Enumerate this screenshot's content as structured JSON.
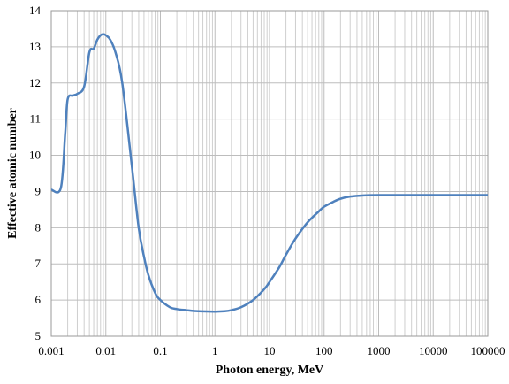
{
  "chart_data": {
    "type": "line",
    "title": "",
    "xlabel": "Photon energy, MeV",
    "ylabel": "Effective atomic number",
    "x_scale": "log",
    "xlim": [
      0.001,
      100000
    ],
    "ylim": [
      5,
      14
    ],
    "grid": true,
    "x_tick_labels": [
      "0.001",
      "0.01",
      "0.1",
      "1",
      "10",
      "100",
      "1000",
      "10000",
      "100000"
    ],
    "y_tick_labels": [
      "5",
      "6",
      "7",
      "8",
      "9",
      "10",
      "11",
      "12",
      "13",
      "14"
    ],
    "series": [
      {
        "color": "#4f81bd",
        "x": [
          0.001,
          0.0015,
          0.0018,
          0.002,
          0.0025,
          0.003,
          0.004,
          0.005,
          0.006,
          0.007,
          0.008,
          0.009,
          0.01,
          0.012,
          0.015,
          0.02,
          0.03,
          0.04,
          0.05,
          0.06,
          0.08,
          0.1,
          0.15,
          0.2,
          0.3,
          0.5,
          1,
          1.5,
          2,
          3,
          5,
          8,
          10,
          15,
          20,
          30,
          50,
          80,
          100,
          150,
          200,
          300,
          500,
          1000,
          10000,
          100000
        ],
        "y": [
          9.05,
          9.1,
          10.6,
          11.55,
          11.65,
          11.7,
          11.9,
          12.85,
          12.95,
          13.2,
          13.32,
          13.35,
          13.32,
          13.2,
          12.85,
          12.0,
          9.7,
          8.0,
          7.2,
          6.7,
          6.2,
          6.0,
          5.8,
          5.75,
          5.72,
          5.69,
          5.68,
          5.69,
          5.72,
          5.8,
          6.0,
          6.3,
          6.5,
          6.9,
          7.25,
          7.7,
          8.15,
          8.45,
          8.58,
          8.72,
          8.8,
          8.86,
          8.89,
          8.9,
          8.9,
          8.9
        ]
      }
    ]
  }
}
